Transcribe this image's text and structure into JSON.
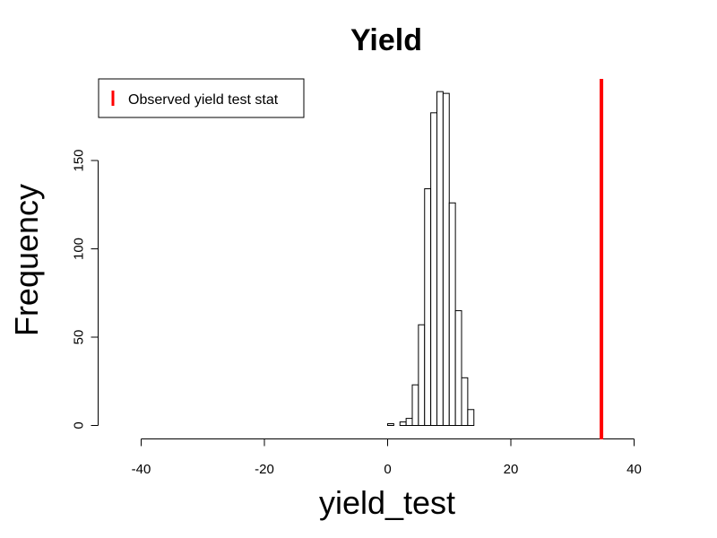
{
  "chart_data": {
    "type": "bar",
    "title": "Yield",
    "xlabel": "yield_test",
    "ylabel": "Frequency",
    "xlim": [
      -40,
      40
    ],
    "ylim": [
      0,
      190
    ],
    "x_ticks": [
      -40,
      -20,
      0,
      20,
      40
    ],
    "y_ticks": [
      0,
      50,
      100,
      150
    ],
    "bin_width": 1,
    "bins": [
      {
        "x0": 0,
        "x1": 1,
        "count": 1
      },
      {
        "x0": 1,
        "x1": 2,
        "count": 0
      },
      {
        "x0": 2,
        "x1": 3,
        "count": 2
      },
      {
        "x0": 3,
        "x1": 4,
        "count": 4
      },
      {
        "x0": 4,
        "x1": 5,
        "count": 23
      },
      {
        "x0": 5,
        "x1": 6,
        "count": 57
      },
      {
        "x0": 6,
        "x1": 7,
        "count": 134
      },
      {
        "x0": 7,
        "x1": 8,
        "count": 177
      },
      {
        "x0": 8,
        "x1": 9,
        "count": 189
      },
      {
        "x0": 9,
        "x1": 10,
        "count": 188
      },
      {
        "x0": 10,
        "x1": 11,
        "count": 126
      },
      {
        "x0": 11,
        "x1": 12,
        "count": 65
      },
      {
        "x0": 12,
        "x1": 13,
        "count": 27
      },
      {
        "x0": 13,
        "x1": 14,
        "count": 9
      }
    ],
    "observed_line": {
      "x": 34.7,
      "color": "#ff0000"
    },
    "legend": {
      "label": "Observed yield test stat",
      "position": "top-left"
    },
    "grid": false
  }
}
